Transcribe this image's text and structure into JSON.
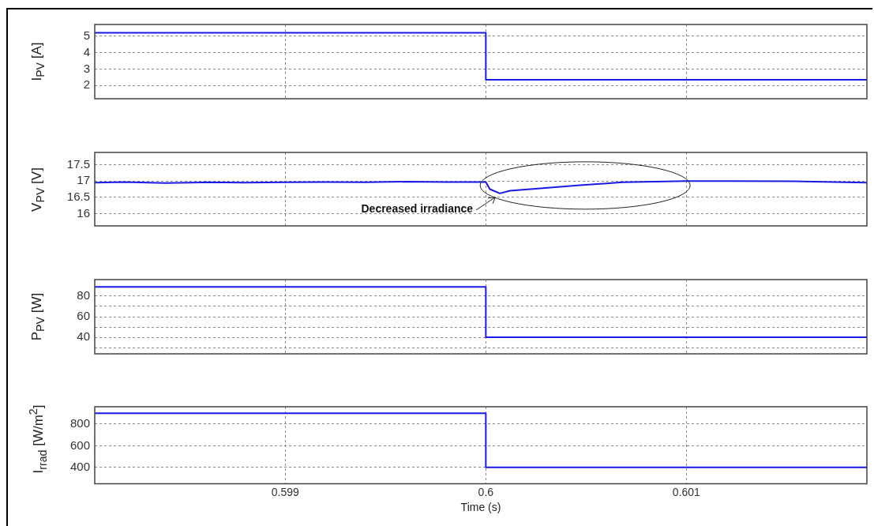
{
  "chart_data": [
    {
      "type": "line",
      "ylabel": "I$_{PV}$ [A]",
      "xlim": [
        0.59805,
        0.6019
      ],
      "xticks": [
        0.599,
        0.6,
        0.601
      ],
      "ylim": [
        1.2,
        5.7
      ],
      "yticks": [
        2,
        3,
        4,
        5
      ],
      "grid": true,
      "tick_labels": "y",
      "x": [
        0.59805,
        0.6,
        0.6,
        0.6019
      ],
      "series": [
        {
          "color": "#1a1ae6",
          "values": [
            5.2,
            5.2,
            2.35,
            2.35
          ]
        }
      ]
    },
    {
      "type": "line",
      "ylabel": "V$_{PV}$ [V]",
      "xlim": [
        0.59805,
        0.6019
      ],
      "xticks": [
        0.599,
        0.6,
        0.601
      ],
      "ylim": [
        15.62,
        17.88
      ],
      "yticks": [
        16,
        16.5,
        17,
        17.5
      ],
      "grid": true,
      "tick_labels": "y",
      "x": [
        0.59805,
        0.5982,
        0.5984,
        0.5986,
        0.5988,
        0.599,
        0.5992,
        0.5994,
        0.5996,
        0.5998,
        0.6,
        0.60002,
        0.60007,
        0.60012,
        0.60026,
        0.60047,
        0.60068,
        0.601,
        0.6012,
        0.60153,
        0.6019
      ],
      "series": [
        {
          "color": "#1a1ae6",
          "values": [
            16.95,
            16.97,
            16.94,
            16.96,
            16.95,
            16.96,
            16.97,
            16.96,
            16.98,
            16.97,
            16.97,
            16.75,
            16.62,
            16.7,
            16.77,
            16.87,
            16.96,
            17.0,
            17.0,
            16.99,
            16.95
          ]
        }
      ],
      "annotations": [
        {
          "text": "Decreased irradiance",
          "x": 0.60007,
          "y": 16.62
        }
      ]
    },
    {
      "type": "line",
      "ylabel": "P$_{PV}$ [W]",
      "xlim": [
        0.59805,
        0.6019
      ],
      "xticks": [
        0.599,
        0.6,
        0.601
      ],
      "ylim": [
        24,
        96
      ],
      "yticks": [
        {
          "value": 30,
          "label": null
        },
        40,
        {
          "value": 50,
          "label": null
        },
        60,
        {
          "value": 70,
          "label": null
        },
        80
      ],
      "grid": true,
      "tick_labels": "y",
      "x": [
        0.59805,
        0.6,
        0.6,
        0.6019
      ],
      "series": [
        {
          "color": "#1a1ae6",
          "values": [
            89,
            89,
            40,
            40
          ]
        }
      ]
    },
    {
      "type": "line",
      "ylabel": "I$_{rrad}$ [W/m$^{2}$]",
      "xlabel": "Time (s)",
      "xlim": [
        0.59805,
        0.6019
      ],
      "xticks": [
        0.599,
        0.6,
        0.601
      ],
      "ylim": [
        250,
        960
      ],
      "yticks": [
        400,
        600,
        800
      ],
      "grid": true,
      "x": [
        0.59805,
        0.6,
        0.6,
        0.6019
      ],
      "series": [
        {
          "color": "#1a1ae6",
          "values": [
            900,
            900,
            400,
            400
          ]
        }
      ]
    }
  ]
}
